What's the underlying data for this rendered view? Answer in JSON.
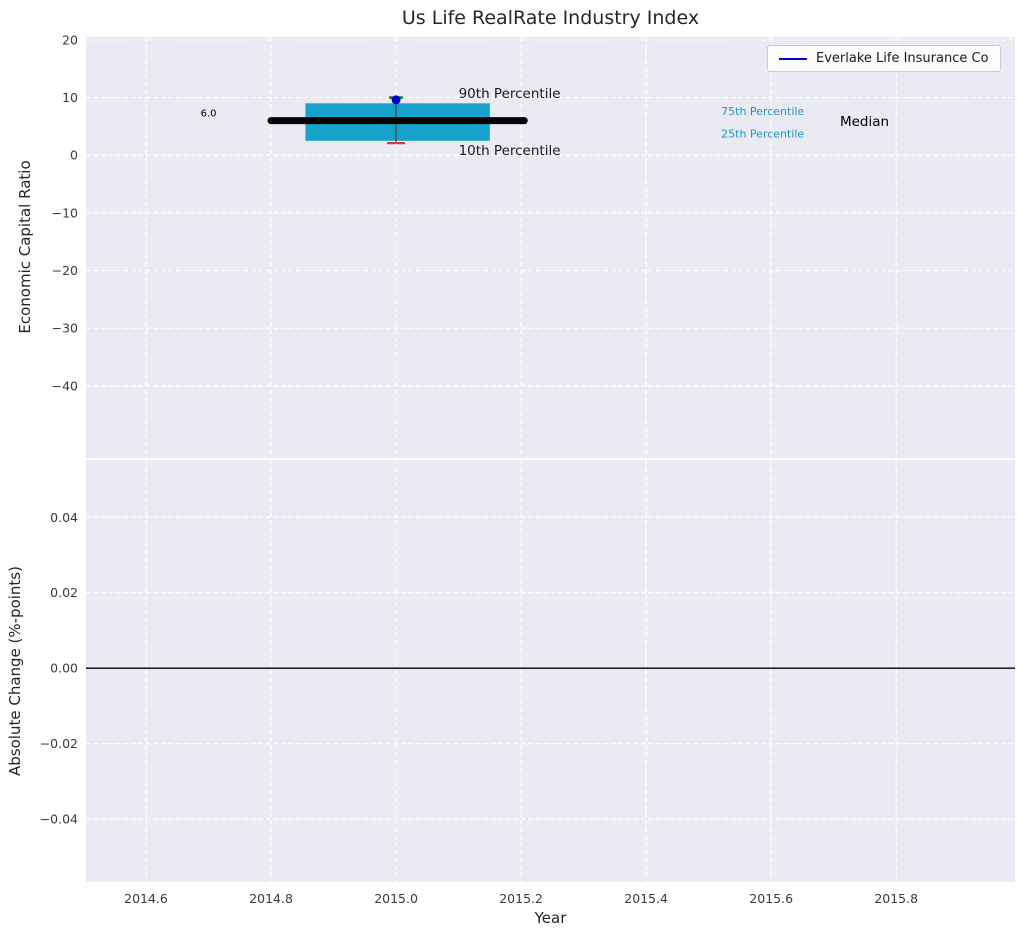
{
  "figure": {
    "title": "Us Life RealRate Industry Index",
    "xlabel": "Year",
    "top_ylabel": "Economic Capital Ratio",
    "bottom_ylabel": "Absolute Change (%-points)"
  },
  "legend": {
    "label": "Everlake Life Insurance Co",
    "line_color": "#0000cd"
  },
  "colors": {
    "axes_bg": "#eaeaf2",
    "grid": "#ffffff",
    "tick": "#3b3b3b",
    "text": "#262626",
    "box_fill": "#16a2cb",
    "median": "#000000",
    "whisker": "#444444",
    "p90_cap": "#008000",
    "p10_cap": "#d93636",
    "company": "#0000cd",
    "zero_line": "#000000",
    "percentile_label": "#2196c3"
  },
  "chart_data": {
    "type": "box",
    "title": "Us Life RealRate Industry Index",
    "xlabel": "Year",
    "legend_entries": [
      "Everlake Life Insurance Co"
    ],
    "x_axis": {
      "xlim": [
        2014.504,
        2015.99
      ],
      "ticks": [
        {
          "value": 2014.6,
          "label": "2014.6"
        },
        {
          "value": 2014.8,
          "label": "2014.8"
        },
        {
          "value": 2015.0,
          "label": "2015.0"
        },
        {
          "value": 2015.2,
          "label": "2015.2"
        },
        {
          "value": 2015.4,
          "label": "2015.4"
        },
        {
          "value": 2015.6,
          "label": "2015.6"
        },
        {
          "value": 2015.8,
          "label": "2015.8"
        }
      ]
    },
    "top_panel": {
      "ylabel": "Economic Capital Ratio",
      "ylim": [
        -52.5,
        20.5
      ],
      "grid": true,
      "ticks": [
        {
          "value": 20,
          "label": "20"
        },
        {
          "value": 10,
          "label": "10"
        },
        {
          "value": 0,
          "label": "0"
        },
        {
          "value": -10,
          "label": "−10"
        },
        {
          "value": -20,
          "label": "−20"
        },
        {
          "value": -30,
          "label": "−30"
        },
        {
          "value": -40,
          "label": "−40"
        }
      ],
      "box": {
        "x_center": 2015.0,
        "box_left": 2014.855,
        "box_right": 2015.15,
        "q1": 2.5,
        "q3": 9.0,
        "median": 6.0,
        "median_left": 2014.8,
        "median_right": 2015.205,
        "p10": 2.1,
        "p90": 10.0,
        "company_value": 9.6
      },
      "annotations": [
        {
          "text": "6.0",
          "x": 2014.7,
          "y": 7.4,
          "anchor": "middle",
          "size": 10,
          "color": "#000000"
        },
        {
          "text": "90th Percentile",
          "x": 2015.1,
          "y": 10.6,
          "anchor": "start",
          "size": 13.5,
          "color": "#1a1a1a"
        },
        {
          "text": "10th Percentile",
          "x": 2015.1,
          "y": 0.7,
          "anchor": "start",
          "size": 13.5,
          "color": "#1a1a1a"
        },
        {
          "text": "75th Percentile",
          "x": 2015.52,
          "y": 7.7,
          "anchor": "start",
          "size": 11,
          "color": "#2196c3"
        },
        {
          "text": "25th Percentile",
          "x": 2015.52,
          "y": 3.8,
          "anchor": "start",
          "size": 11,
          "color": "#2196c3"
        },
        {
          "text": "Median",
          "x": 2015.71,
          "y": 5.8,
          "anchor": "start",
          "size": 13.5,
          "color": "#000000"
        }
      ]
    },
    "bottom_panel": {
      "ylabel": "Absolute Change (%-points)",
      "ylim": [
        -0.0567,
        0.0552
      ],
      "grid": true,
      "ticks": [
        {
          "value": 0.04,
          "label": "0.04"
        },
        {
          "value": 0.02,
          "label": "0.02"
        },
        {
          "value": 0.0,
          "label": "0.00"
        },
        {
          "value": -0.02,
          "label": "−0.02"
        },
        {
          "value": -0.04,
          "label": "−0.04"
        }
      ],
      "zero_line": 0.0
    }
  }
}
